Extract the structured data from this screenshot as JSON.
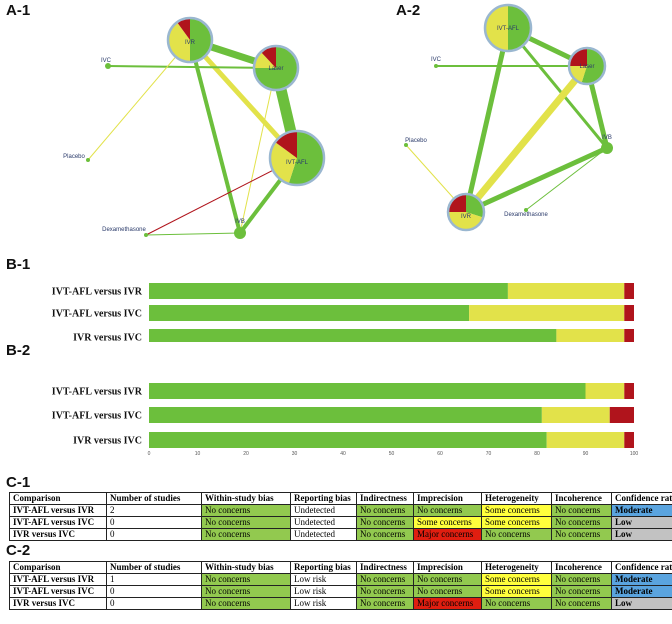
{
  "panels": {
    "a1": "A-1",
    "a2": "A-2",
    "b1": "B-1",
    "b2": "B-2",
    "c1": "C-1",
    "c2": "C-2"
  },
  "colors": {
    "green": "#6cbf3c",
    "yellow": "#e2e24a",
    "red": "#b0141c",
    "node_border": "#9ab7d0"
  },
  "networks": {
    "a1": {
      "nodes": [
        {
          "label": "IVR",
          "proportions": {
            "green": 0.5,
            "yellow": 0.4,
            "red": 0.1
          }
        },
        {
          "label": "Laser",
          "proportions": {
            "green": 0.75,
            "yellow": 0.13,
            "red": 0.12
          }
        },
        {
          "label": "IVT-AFL",
          "proportions": {
            "green": 0.55,
            "yellow": 0.3,
            "red": 0.15
          }
        },
        {
          "label": "IVC"
        },
        {
          "label": "Placebo"
        },
        {
          "label": "Dexamethasone"
        },
        {
          "label": "IVB"
        }
      ]
    },
    "a2": {
      "nodes": [
        {
          "label": "IVT-AFL",
          "proportions": {
            "green": 0.5,
            "yellow": 0.5,
            "red": 0
          }
        },
        {
          "label": "Laser",
          "proportions": {
            "green": 0.55,
            "yellow": 0.2,
            "red": 0.25
          }
        },
        {
          "label": "IVC"
        },
        {
          "label": "IVB"
        },
        {
          "label": "Placebo"
        },
        {
          "label": "IVR",
          "proportions": {
            "green": 0.3,
            "yellow": 0.45,
            "red": 0.25
          }
        },
        {
          "label": "Dexamethasone"
        }
      ]
    }
  },
  "chart_data": [
    {
      "type": "bar",
      "orientation": "horizontal-stacked",
      "categories": [
        "IVT-AFL versus IVR",
        "IVT-AFL versus IVC",
        "IVR versus IVC"
      ],
      "series": [
        {
          "color": "green",
          "values": [
            74,
            66,
            84
          ]
        },
        {
          "color": "yellow",
          "values": [
            24,
            32,
            14
          ]
        },
        {
          "color": "red",
          "values": [
            2,
            2,
            2
          ]
        }
      ],
      "xticks": [
        "0",
        "10",
        "20",
        "30",
        "40",
        "50",
        "60",
        "70",
        "80",
        "90",
        "100"
      ],
      "xlim": [
        0,
        100
      ]
    },
    {
      "type": "bar",
      "orientation": "horizontal-stacked",
      "categories": [
        "IVT-AFL versus IVR",
        "IVT-AFL versus IVC",
        "IVR versus IVC"
      ],
      "series": [
        {
          "color": "green",
          "values": [
            90,
            81,
            82
          ]
        },
        {
          "color": "yellow",
          "values": [
            8,
            14,
            16
          ]
        },
        {
          "color": "red",
          "values": [
            2,
            5,
            2
          ]
        }
      ],
      "xticks": [
        "0",
        "10",
        "20",
        "30",
        "40",
        "50",
        "60",
        "70",
        "80",
        "90",
        "100"
      ],
      "xlim": [
        0,
        100
      ]
    },
    {
      "type": "table",
      "columns": [
        "Comparison",
        "Number of studies",
        "Within-study bias",
        "Reporting bias",
        "Indirectness",
        "Imprecision",
        "Heterogeneity",
        "Incoherence",
        "Confidence rating"
      ],
      "rows": [
        [
          {
            "t": "IVT-AFL versus IVR",
            "c": "",
            "b": true
          },
          {
            "t": "2",
            "c": ""
          },
          {
            "t": "No concerns",
            "c": "green"
          },
          {
            "t": "Undetected",
            "c": ""
          },
          {
            "t": "No concerns",
            "c": "green"
          },
          {
            "t": "No concerns",
            "c": "green"
          },
          {
            "t": "Some concerns",
            "c": "yellow"
          },
          {
            "t": "No concerns",
            "c": "green"
          },
          {
            "t": "Moderate",
            "c": "blue",
            "b": true
          }
        ],
        [
          {
            "t": "IVT-AFL versus IVC",
            "c": "",
            "b": true
          },
          {
            "t": "0",
            "c": ""
          },
          {
            "t": "No concerns",
            "c": "green"
          },
          {
            "t": "Undetected",
            "c": ""
          },
          {
            "t": "No concerns",
            "c": "green"
          },
          {
            "t": "Some concerns",
            "c": "yellow"
          },
          {
            "t": "Some concerns",
            "c": "yellow"
          },
          {
            "t": "No concerns",
            "c": "green"
          },
          {
            "t": "Low",
            "c": "grey",
            "b": true
          }
        ],
        [
          {
            "t": "IVR versus IVC",
            "c": "",
            "b": true
          },
          {
            "t": "0",
            "c": ""
          },
          {
            "t": "No concerns",
            "c": "green"
          },
          {
            "t": "Undetected",
            "c": ""
          },
          {
            "t": "No concerns",
            "c": "green"
          },
          {
            "t": "Major concerns",
            "c": "red"
          },
          {
            "t": "No concerns",
            "c": "green"
          },
          {
            "t": "No concerns",
            "c": "green"
          },
          {
            "t": "Low",
            "c": "grey",
            "b": true
          }
        ]
      ]
    },
    {
      "type": "table",
      "columns": [
        "Comparison",
        "Number of studies",
        "Within-study bias",
        "Reporting bias",
        "Indirectness",
        "Imprecision",
        "Heterogeneity",
        "Incoherence",
        "Confidence rating"
      ],
      "rows": [
        [
          {
            "t": "IVT-AFL versus IVR",
            "c": "",
            "b": true
          },
          {
            "t": "1",
            "c": ""
          },
          {
            "t": "No concerns",
            "c": "green"
          },
          {
            "t": "Low risk",
            "c": ""
          },
          {
            "t": "No concerns",
            "c": "green"
          },
          {
            "t": "No concerns",
            "c": "green"
          },
          {
            "t": "Some concerns",
            "c": "yellow"
          },
          {
            "t": "No concerns",
            "c": "green"
          },
          {
            "t": "Moderate",
            "c": "blue",
            "b": true
          }
        ],
        [
          {
            "t": "IVT-AFL versus IVC",
            "c": "",
            "b": true
          },
          {
            "t": "0",
            "c": ""
          },
          {
            "t": "No concerns",
            "c": "green"
          },
          {
            "t": "Low risk",
            "c": ""
          },
          {
            "t": "No concerns",
            "c": "green"
          },
          {
            "t": "No concerns",
            "c": "green"
          },
          {
            "t": "Some concerns",
            "c": "yellow"
          },
          {
            "t": "No concerns",
            "c": "green"
          },
          {
            "t": "Moderate",
            "c": "blue",
            "b": true
          }
        ],
        [
          {
            "t": "IVR versus IVC",
            "c": "",
            "b": true
          },
          {
            "t": "0",
            "c": ""
          },
          {
            "t": "No concerns",
            "c": "green"
          },
          {
            "t": "Low risk",
            "c": ""
          },
          {
            "t": "No concerns",
            "c": "green"
          },
          {
            "t": "Major concerns",
            "c": "red"
          },
          {
            "t": "No concerns",
            "c": "green"
          },
          {
            "t": "No concerns",
            "c": "green"
          },
          {
            "t": "Low",
            "c": "grey",
            "b": true
          }
        ]
      ]
    }
  ]
}
